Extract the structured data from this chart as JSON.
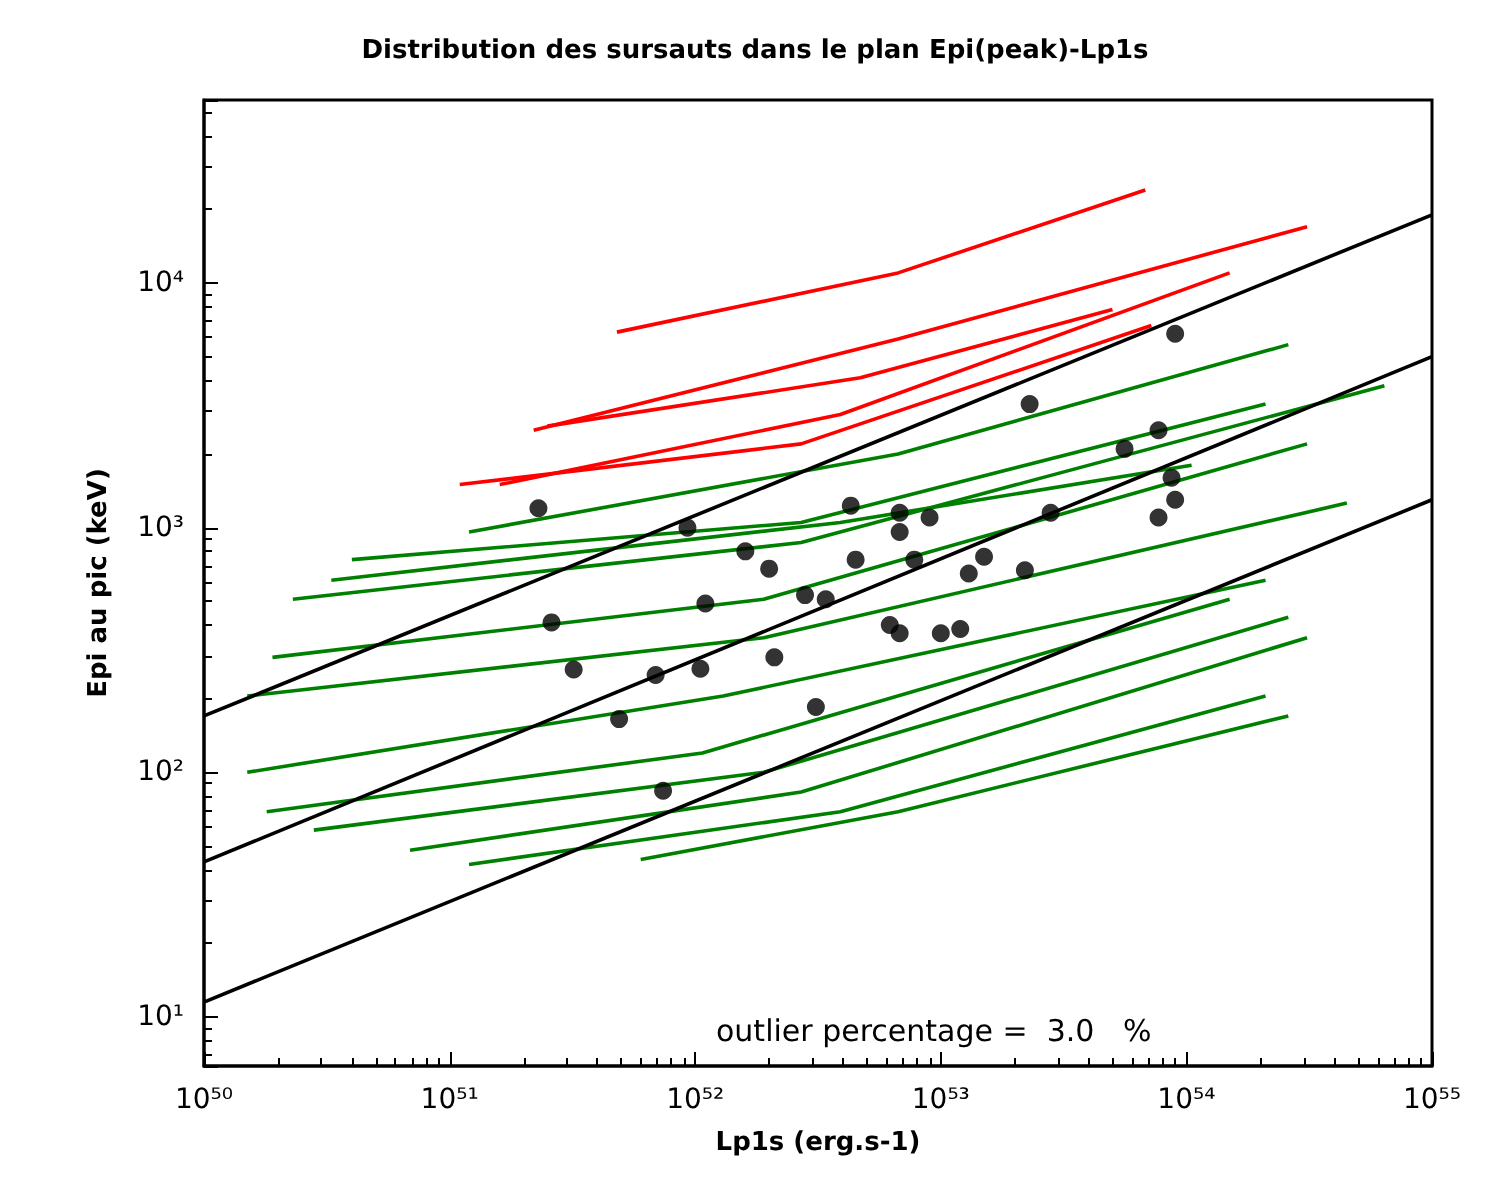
{
  "chart_data": {
    "type": "line",
    "title": "Distribution des sursauts dans le plan Epi(peak)-Lp1s",
    "xlabel": "Lp1s (erg.s-1)",
    "ylabel": "Epi au pic (keV)",
    "log": "xy",
    "grid": false,
    "xlim": [
      1e+50,
      1e+55
    ],
    "ylim": [
      6.3,
      56000
    ],
    "xticks": [
      {
        "value": 1e+50,
        "label": "10⁵⁰"
      },
      {
        "value": 1e+51,
        "label": "10⁵¹"
      },
      {
        "value": 1e+52,
        "label": "10⁵²"
      },
      {
        "value": 1e+53,
        "label": "10⁵³"
      },
      {
        "value": 1e+54,
        "label": "10⁵⁴"
      },
      {
        "value": 1e+55,
        "label": "10⁵⁵"
      }
    ],
    "yticks": [
      {
        "value": 10,
        "label": "10¹"
      },
      {
        "value": 100,
        "label": "10²"
      },
      {
        "value": 1000,
        "label": "10³"
      },
      {
        "value": 10000,
        "label": "10⁴"
      }
    ],
    "annotations": [
      "outlier percentage =  3.0   %"
    ],
    "series": [
      {
        "color": "#ff0000",
        "x": [
          4.8e+51,
          6.7e+52,
          6.8e+53
        ],
        "values": [
          6300,
          11000,
          24000
        ]
      },
      {
        "color": "#ff0000",
        "x": [
          2.2e+51,
          6.7e+52,
          3.1e+54
        ],
        "values": [
          2500,
          5900,
          17000
        ]
      },
      {
        "color": "#ff0000",
        "x": [
          1.6e+51,
          3.9e+52,
          1.5e+54
        ],
        "values": [
          1500,
          2900,
          11000
        ]
      },
      {
        "color": "#ff0000",
        "x": [
          1.1e+51,
          2.7e+52,
          7.2e+53
        ],
        "values": [
          1500,
          2200,
          6700
        ]
      },
      {
        "color": "#ff0000",
        "x": [
          2.5e+51,
          4.7e+52,
          5e+53
        ],
        "values": [
          2600,
          4100,
          7800
        ]
      },
      {
        "color": "#008000",
        "x": [
          1.2e+51,
          6.7e+52,
          2.6e+54
        ],
        "values": [
          960,
          2000,
          5600
        ]
      },
      {
        "color": "#008000",
        "x": [
          4e+50,
          2.7e+52,
          2.1e+54
        ],
        "values": [
          740,
          1050,
          3200
        ]
      },
      {
        "color": "#008000",
        "x": [
          2.3e+50,
          2.7e+52,
          6.4e+54
        ],
        "values": [
          510,
          870,
          3800
        ]
      },
      {
        "color": "#008000",
        "x": [
          1.9e+50,
          1.9e+52,
          3.1e+54
        ],
        "values": [
          295,
          510,
          2200
        ]
      },
      {
        "color": "#008000",
        "x": [
          1.5e+50,
          1.9e+52,
          4.5e+54
        ],
        "values": [
          205,
          355,
          1260
        ]
      },
      {
        "color": "#008000",
        "x": [
          1.5e+50,
          1.3e+52,
          2.1e+54
        ],
        "values": [
          100,
          205,
          610
        ]
      },
      {
        "color": "#008000",
        "x": [
          1.8e+50,
          1.07e+52,
          1.5e+54
        ],
        "values": [
          69,
          120,
          510
        ]
      },
      {
        "color": "#008000",
        "x": [
          2.8e+50,
          1.9e+52,
          2.6e+54
        ],
        "values": [
          58,
          100,
          430
        ]
      },
      {
        "color": "#008000",
        "x": [
          6.9e+50,
          2.7e+52,
          3.1e+54
        ],
        "values": [
          48,
          83,
          355
        ]
      },
      {
        "color": "#008000",
        "x": [
          1.2e+51,
          3.9e+52,
          2.1e+54
        ],
        "values": [
          42,
          69,
          205
        ]
      },
      {
        "color": "#008000",
        "x": [
          6e+51,
          6.7e+52,
          2.6e+54
        ],
        "values": [
          44,
          69,
          170
        ]
      },
      {
        "color": "#008000",
        "x": [
          3.3e+50,
          3.9e+52,
          1.05e+54
        ],
        "values": [
          610,
          1050,
          1800
        ]
      },
      {
        "color": "#000000",
        "x": [
          1e+50,
          1e+55
        ],
        "values": [
          170,
          19000
        ]
      },
      {
        "color": "#000000",
        "x": [
          1e+50,
          1e+55
        ],
        "values": [
          43,
          5000
        ]
      },
      {
        "color": "#000000",
        "x": [
          1e+50,
          1e+55
        ],
        "values": [
          11.5,
          1300
        ]
      },
      {
        "type": "scatter",
        "marker": "circle",
        "color": "#000000",
        "x": [
          2.3e+51,
          2.6e+51,
          3.2e+51,
          4.9e+51,
          6.9e+51,
          7.4e+51,
          9.3e+51,
          1.05e+52,
          1.1e+52,
          1.6e+52,
          2e+52,
          2.1e+52,
          2.8e+52,
          3.1e+52,
          3.4e+52,
          4.3e+52,
          4.5e+52,
          6.2e+52,
          6.8e+52,
          6.8e+52,
          6.8e+52,
          7.8e+52,
          9e+52,
          1e+53,
          1.2e+53,
          1.3e+53,
          1.5e+53,
          2.2e+53,
          2.3e+53,
          2.8e+53,
          5.6e+53,
          7.7e+53,
          9e+53,
          8.7e+53,
          9e+53,
          7.7e+53
        ],
        "values": [
          1200,
          410,
          263,
          165,
          250,
          84,
          1000,
          265,
          490,
          800,
          680,
          295,
          530,
          185,
          510,
          1230,
          740,
          400,
          370,
          1150,
          960,
          740,
          1100,
          370,
          385,
          650,
          760,
          670,
          3200,
          1150,
          2100,
          2500,
          6200,
          1600,
          1300,
          1100
        ]
      }
    ]
  }
}
